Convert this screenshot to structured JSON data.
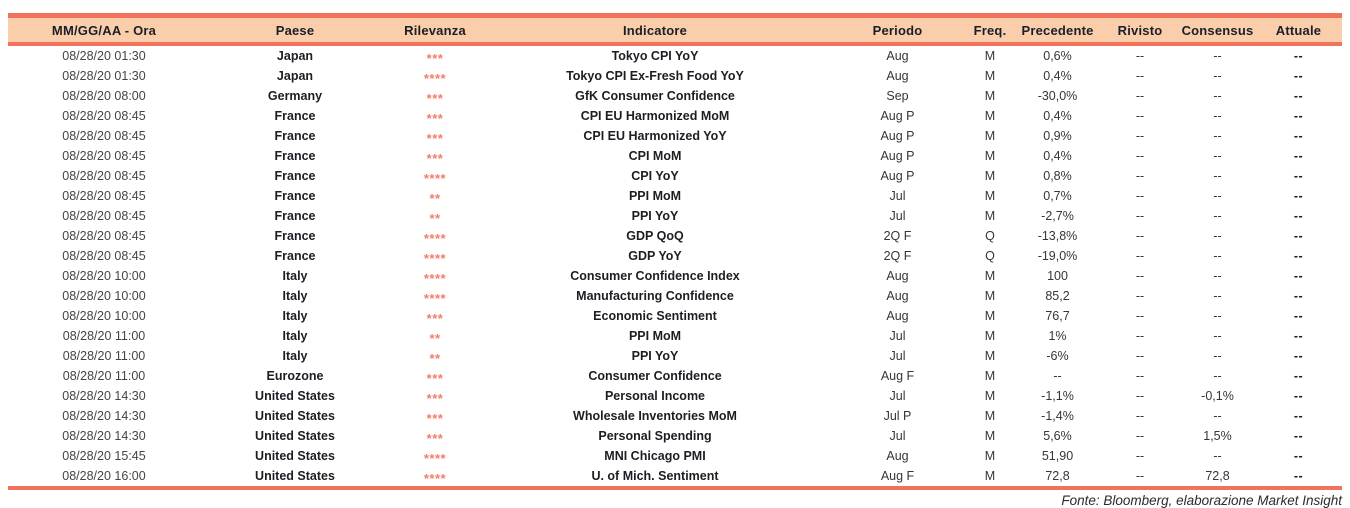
{
  "colors": {
    "accent_line": "#f2735b",
    "header_background": "#fbceab",
    "relevance_stars": "#f47c6a",
    "header_text": "#1b1e28",
    "body_text": "#35353b"
  },
  "table": {
    "columns": [
      {
        "key": "datetime",
        "label": "MM/GG/AA - Ora"
      },
      {
        "key": "country",
        "label": "Paese"
      },
      {
        "key": "relevance",
        "label": "Rilevanza"
      },
      {
        "key": "indicator",
        "label": "Indicatore"
      },
      {
        "key": "period",
        "label": "Periodo"
      },
      {
        "key": "freq",
        "label": "Freq."
      },
      {
        "key": "previous",
        "label": "Precedente"
      },
      {
        "key": "revised",
        "label": "Rivisto"
      },
      {
        "key": "consensus",
        "label": "Consensus"
      },
      {
        "key": "actual",
        "label": "Attuale"
      }
    ],
    "rows": [
      {
        "datetime": "08/28/20 01:30",
        "country": "Japan",
        "relevance": "***",
        "indicator": "Tokyo CPI YoY",
        "period": "Aug",
        "freq": "M",
        "previous": "0,6%",
        "revised": "--",
        "consensus": "--",
        "actual": "--"
      },
      {
        "datetime": "08/28/20 01:30",
        "country": "Japan",
        "relevance": "****",
        "indicator": "Tokyo CPI Ex-Fresh Food YoY",
        "period": "Aug",
        "freq": "M",
        "previous": "0,4%",
        "revised": "--",
        "consensus": "--",
        "actual": "--"
      },
      {
        "datetime": "08/28/20 08:00",
        "country": "Germany",
        "relevance": "***",
        "indicator": "GfK Consumer Confidence",
        "period": "Sep",
        "freq": "M",
        "previous": "-30,0%",
        "revised": "--",
        "consensus": "--",
        "actual": "--"
      },
      {
        "datetime": "08/28/20 08:45",
        "country": "France",
        "relevance": "***",
        "indicator": "CPI EU Harmonized MoM",
        "period": "Aug P",
        "freq": "M",
        "previous": "0,4%",
        "revised": "--",
        "consensus": "--",
        "actual": "--"
      },
      {
        "datetime": "08/28/20 08:45",
        "country": "France",
        "relevance": "***",
        "indicator": "CPI EU Harmonized YoY",
        "period": "Aug P",
        "freq": "M",
        "previous": "0,9%",
        "revised": "--",
        "consensus": "--",
        "actual": "--"
      },
      {
        "datetime": "08/28/20 08:45",
        "country": "France",
        "relevance": "***",
        "indicator": "CPI MoM",
        "period": "Aug P",
        "freq": "M",
        "previous": "0,4%",
        "revised": "--",
        "consensus": "--",
        "actual": "--"
      },
      {
        "datetime": "08/28/20 08:45",
        "country": "France",
        "relevance": "****",
        "indicator": "CPI YoY",
        "period": "Aug P",
        "freq": "M",
        "previous": "0,8%",
        "revised": "--",
        "consensus": "--",
        "actual": "--"
      },
      {
        "datetime": "08/28/20 08:45",
        "country": "France",
        "relevance": "**",
        "indicator": "PPI MoM",
        "period": "Jul",
        "freq": "M",
        "previous": "0,7%",
        "revised": "--",
        "consensus": "--",
        "actual": "--"
      },
      {
        "datetime": "08/28/20 08:45",
        "country": "France",
        "relevance": "**",
        "indicator": "PPI YoY",
        "period": "Jul",
        "freq": "M",
        "previous": "-2,7%",
        "revised": "--",
        "consensus": "--",
        "actual": "--"
      },
      {
        "datetime": "08/28/20 08:45",
        "country": "France",
        "relevance": "****",
        "indicator": "GDP QoQ",
        "period": "2Q F",
        "freq": "Q",
        "previous": "-13,8%",
        "revised": "--",
        "consensus": "--",
        "actual": "--"
      },
      {
        "datetime": "08/28/20 08:45",
        "country": "France",
        "relevance": "****",
        "indicator": "GDP YoY",
        "period": "2Q F",
        "freq": "Q",
        "previous": "-19,0%",
        "revised": "--",
        "consensus": "--",
        "actual": "--"
      },
      {
        "datetime": "08/28/20 10:00",
        "country": "Italy",
        "relevance": "****",
        "indicator": "Consumer Confidence Index",
        "period": "Aug",
        "freq": "M",
        "previous": "100",
        "revised": "--",
        "consensus": "--",
        "actual": "--"
      },
      {
        "datetime": "08/28/20 10:00",
        "country": "Italy",
        "relevance": "****",
        "indicator": "Manufacturing Confidence",
        "period": "Aug",
        "freq": "M",
        "previous": "85,2",
        "revised": "--",
        "consensus": "--",
        "actual": "--"
      },
      {
        "datetime": "08/28/20 10:00",
        "country": "Italy",
        "relevance": "***",
        "indicator": "Economic Sentiment",
        "period": "Aug",
        "freq": "M",
        "previous": "76,7",
        "revised": "--",
        "consensus": "--",
        "actual": "--"
      },
      {
        "datetime": "08/28/20 11:00",
        "country": "Italy",
        "relevance": "**",
        "indicator": "PPI MoM",
        "period": "Jul",
        "freq": "M",
        "previous": "1%",
        "revised": "--",
        "consensus": "--",
        "actual": "--"
      },
      {
        "datetime": "08/28/20 11:00",
        "country": "Italy",
        "relevance": "**",
        "indicator": "PPI YoY",
        "period": "Jul",
        "freq": "M",
        "previous": "-6%",
        "revised": "--",
        "consensus": "--",
        "actual": "--"
      },
      {
        "datetime": "08/28/20 11:00",
        "country": "Eurozone",
        "relevance": "***",
        "indicator": "Consumer Confidence",
        "period": "Aug F",
        "freq": "M",
        "previous": "--",
        "revised": "--",
        "consensus": "--",
        "actual": "--"
      },
      {
        "datetime": "08/28/20 14:30",
        "country": "United States",
        "relevance": "***",
        "indicator": "Personal Income",
        "period": "Jul",
        "freq": "M",
        "previous": "-1,1%",
        "revised": "--",
        "consensus": "-0,1%",
        "actual": "--"
      },
      {
        "datetime": "08/28/20 14:30",
        "country": "United States",
        "relevance": "***",
        "indicator": "Wholesale Inventories MoM",
        "period": "Jul P",
        "freq": "M",
        "previous": "-1,4%",
        "revised": "--",
        "consensus": "--",
        "actual": "--"
      },
      {
        "datetime": "08/28/20 14:30",
        "country": "United States",
        "relevance": "***",
        "indicator": "Personal Spending",
        "period": "Jul",
        "freq": "M",
        "previous": "5,6%",
        "revised": "--",
        "consensus": "1,5%",
        "actual": "--"
      },
      {
        "datetime": "08/28/20 15:45",
        "country": "United States",
        "relevance": "****",
        "indicator": "MNI Chicago PMI",
        "period": "Aug",
        "freq": "M",
        "previous": "51,90",
        "revised": "--",
        "consensus": "--",
        "actual": "--"
      },
      {
        "datetime": "08/28/20 16:00",
        "country": "United States",
        "relevance": "****",
        "indicator": "U. of Mich. Sentiment",
        "period": "Aug F",
        "freq": "M",
        "previous": "72,8",
        "revised": "--",
        "consensus": "72,8",
        "actual": "--"
      }
    ]
  },
  "footer": {
    "source_note": "Fonte: Bloomberg, elaborazione Market Insight"
  }
}
